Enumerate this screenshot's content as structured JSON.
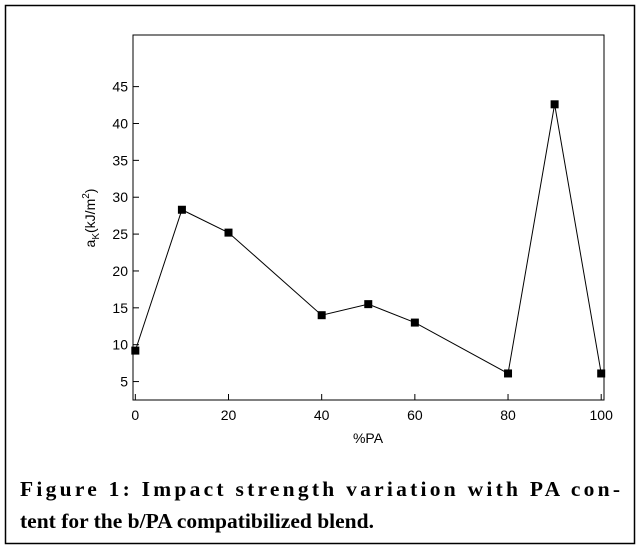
{
  "chart_data": {
    "type": "line",
    "x_label": "%PA",
    "y_label": {
      "base": "a",
      "sub": "K",
      "unit_open": "(kJ/m",
      "sup": "2",
      "close": ")"
    },
    "x": [
      0,
      10,
      20,
      40,
      50,
      60,
      80,
      90,
      100
    ],
    "series": [
      {
        "name": "Impact strength",
        "color": "#000000",
        "values": [
          9.2,
          28.3,
          25.2,
          14.0,
          15.5,
          13.0,
          6.1,
          42.6,
          6.1
        ]
      }
    ],
    "xlim": [
      -0.5,
      100.6
    ],
    "ylim": [
      2.5,
      52
    ],
    "xticks": [
      0,
      20,
      40,
      60,
      80,
      100
    ],
    "yticks": [
      5,
      10,
      15,
      20,
      25,
      30,
      35,
      40,
      45
    ],
    "grid": false
  },
  "caption": [
    "Figure 1: Impact strength variation with PA con-",
    "tent for the b/PA compatibilized blend."
  ]
}
